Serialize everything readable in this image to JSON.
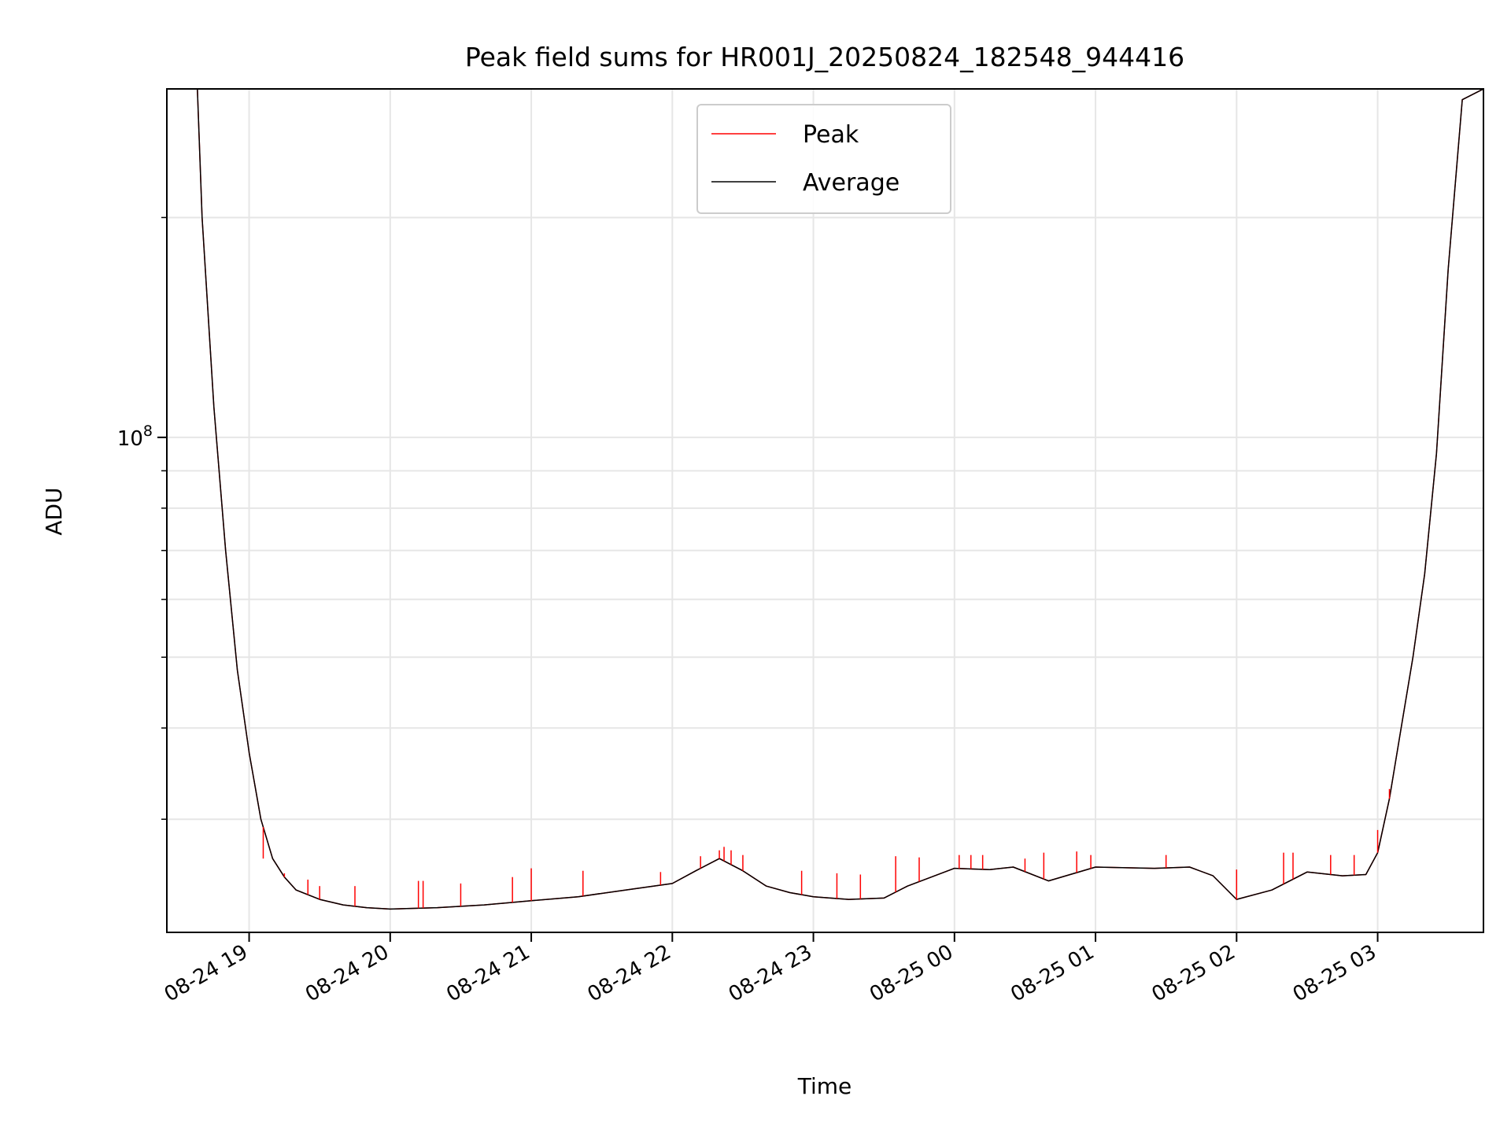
{
  "chart_data": {
    "type": "line",
    "title": "Peak field sums for HR001J_20250824_182548_944416",
    "xlabel": "Time",
    "ylabel": "ADU",
    "yscale": "log",
    "ylim": [
      21000000,
      300000000
    ],
    "xlim": [
      "2025-08-24 18:25",
      "2025-08-25 03:45"
    ],
    "x_ticks": [
      "2025-08-24 19:00",
      "2025-08-24 20:00",
      "2025-08-24 21:00",
      "2025-08-24 22:00",
      "2025-08-24 23:00",
      "2025-08-25 00:00",
      "2025-08-25 01:00",
      "2025-08-25 02:00",
      "2025-08-25 03:00"
    ],
    "x_tick_labels": [
      "08-24 19",
      "08-24 20",
      "08-24 21",
      "08-24 22",
      "08-24 23",
      "08-25 00",
      "08-25 01",
      "08-25 02",
      "08-25 03"
    ],
    "y_major_ticks": [
      100000000
    ],
    "y_major_tick_labels": [
      {
        "base": "10",
        "exp": "8"
      }
    ],
    "y_minor_ticks": [
      30000000,
      40000000,
      50000000,
      60000000,
      70000000,
      80000000,
      90000000,
      200000000
    ],
    "grid": true,
    "legend": {
      "position": "upper center",
      "entries": [
        "Peak",
        "Average"
      ]
    },
    "series": [
      {
        "name": "Peak",
        "color": "#ff0000",
        "x": [
          "2025-08-24 18:25",
          "2025-08-24 18:38",
          "2025-08-24 18:40",
          "2025-08-24 18:45",
          "2025-08-24 18:50",
          "2025-08-24 18:55",
          "2025-08-24 19:00",
          "2025-08-24 19:05",
          "2025-08-24 19:10",
          "2025-08-24 19:15",
          "2025-08-24 19:20",
          "2025-08-24 19:30",
          "2025-08-24 19:40",
          "2025-08-24 19:50",
          "2025-08-24 20:00",
          "2025-08-24 20:20",
          "2025-08-24 20:40",
          "2025-08-24 21:00",
          "2025-08-24 21:20",
          "2025-08-24 21:40",
          "2025-08-24 22:00",
          "2025-08-24 22:10",
          "2025-08-24 22:20",
          "2025-08-24 22:30",
          "2025-08-24 22:40",
          "2025-08-24 22:50",
          "2025-08-24 23:00",
          "2025-08-24 23:15",
          "2025-08-24 23:30",
          "2025-08-24 23:40",
          "2025-08-25 00:00",
          "2025-08-25 00:15",
          "2025-08-25 00:25",
          "2025-08-25 00:40",
          "2025-08-25 01:00",
          "2025-08-25 01:25",
          "2025-08-25 01:40",
          "2025-08-25 01:50",
          "2025-08-25 02:00",
          "2025-08-25 02:15",
          "2025-08-25 02:30",
          "2025-08-25 02:45",
          "2025-08-25 02:55",
          "2025-08-25 03:00",
          "2025-08-25 03:05",
          "2025-08-25 03:10",
          "2025-08-25 03:15",
          "2025-08-25 03:20",
          "2025-08-25 03:25",
          "2025-08-25 03:30",
          "2025-08-25 03:36",
          "2025-08-25 03:45"
        ],
        "y": [
          300000000,
          300000000,
          200000000,
          110000000,
          70000000,
          48000000,
          37000000,
          30000000,
          26500000,
          25000000,
          24000000,
          23300000,
          22900000,
          22700000,
          22600000,
          22700000,
          22900000,
          23200000,
          23500000,
          24000000,
          24500000,
          25500000,
          26500000,
          25500000,
          24300000,
          23800000,
          23500000,
          23300000,
          23400000,
          24300000,
          25700000,
          25600000,
          25800000,
          24700000,
          25800000,
          25700000,
          25800000,
          25100000,
          23300000,
          24000000,
          25400000,
          25100000,
          25200000,
          27000000,
          32000000,
          40000000,
          50000000,
          65000000,
          95000000,
          170000000,
          290000000,
          300000000
        ]
      },
      {
        "name": "Average",
        "color": "#000000",
        "x": [
          "2025-08-24 18:25",
          "2025-08-24 18:38",
          "2025-08-24 18:40",
          "2025-08-24 18:45",
          "2025-08-24 18:50",
          "2025-08-24 18:55",
          "2025-08-24 19:00",
          "2025-08-24 19:05",
          "2025-08-24 19:10",
          "2025-08-24 19:15",
          "2025-08-24 19:20",
          "2025-08-24 19:30",
          "2025-08-24 19:40",
          "2025-08-24 19:50",
          "2025-08-24 20:00",
          "2025-08-24 20:20",
          "2025-08-24 20:40",
          "2025-08-24 21:00",
          "2025-08-24 21:20",
          "2025-08-24 21:40",
          "2025-08-24 22:00",
          "2025-08-24 22:10",
          "2025-08-24 22:20",
          "2025-08-24 22:30",
          "2025-08-24 22:40",
          "2025-08-24 22:50",
          "2025-08-24 23:00",
          "2025-08-24 23:15",
          "2025-08-24 23:30",
          "2025-08-24 23:40",
          "2025-08-25 00:00",
          "2025-08-25 00:15",
          "2025-08-25 00:25",
          "2025-08-25 00:40",
          "2025-08-25 01:00",
          "2025-08-25 01:25",
          "2025-08-25 01:40",
          "2025-08-25 01:50",
          "2025-08-25 02:00",
          "2025-08-25 02:15",
          "2025-08-25 02:30",
          "2025-08-25 02:45",
          "2025-08-25 02:55",
          "2025-08-25 03:00",
          "2025-08-25 03:05",
          "2025-08-25 03:10",
          "2025-08-25 03:15",
          "2025-08-25 03:20",
          "2025-08-25 03:25",
          "2025-08-25 03:30",
          "2025-08-25 03:36",
          "2025-08-25 03:45"
        ],
        "y": [
          300000000,
          300000000,
          200000000,
          110000000,
          70000000,
          48000000,
          37000000,
          30000000,
          26500000,
          25000000,
          24000000,
          23300000,
          22900000,
          22700000,
          22600000,
          22700000,
          22900000,
          23200000,
          23500000,
          24000000,
          24500000,
          25500000,
          26500000,
          25500000,
          24300000,
          23800000,
          23500000,
          23300000,
          23400000,
          24300000,
          25700000,
          25600000,
          25800000,
          24700000,
          25800000,
          25700000,
          25800000,
          25100000,
          23300000,
          24000000,
          25400000,
          25100000,
          25200000,
          27000000,
          32000000,
          40000000,
          50000000,
          65000000,
          95000000,
          170000000,
          290000000,
          300000000
        ]
      }
    ],
    "peak_spikes": {
      "x": [
        "2025-08-24 19:06",
        "2025-08-24 19:15",
        "2025-08-24 19:25",
        "2025-08-24 19:30",
        "2025-08-24 19:45",
        "2025-08-24 20:12",
        "2025-08-24 20:14",
        "2025-08-24 20:30",
        "2025-08-24 20:52",
        "2025-08-24 21:00",
        "2025-08-24 21:22",
        "2025-08-24 21:55",
        "2025-08-24 22:12",
        "2025-08-24 22:20",
        "2025-08-24 22:22",
        "2025-08-24 22:25",
        "2025-08-24 22:30",
        "2025-08-24 22:55",
        "2025-08-24 23:10",
        "2025-08-24 23:20",
        "2025-08-24 23:35",
        "2025-08-24 23:45",
        "2025-08-25 00:02",
        "2025-08-25 00:07",
        "2025-08-25 00:12",
        "2025-08-25 00:30",
        "2025-08-25 00:38",
        "2025-08-25 00:52",
        "2025-08-25 00:58",
        "2025-08-25 01:30",
        "2025-08-25 02:00",
        "2025-08-25 02:20",
        "2025-08-25 02:24",
        "2025-08-25 02:40",
        "2025-08-25 02:50",
        "2025-08-25 03:00",
        "2025-08-25 03:05"
      ],
      "y": [
        26500000,
        25300000,
        24800000,
        24300000,
        24300000,
        24700000,
        24700000,
        24500000,
        25000000,
        25700000,
        25500000,
        25400000,
        26700000,
        27200000,
        27500000,
        27200000,
        26800000,
        25500000,
        25300000,
        25200000,
        26700000,
        26600000,
        26800000,
        26800000,
        26800000,
        26500000,
        27000000,
        27100000,
        26800000,
        26800000,
        25600000,
        27000000,
        27000000,
        26800000,
        26800000,
        29000000,
        33000000
      ]
    }
  }
}
